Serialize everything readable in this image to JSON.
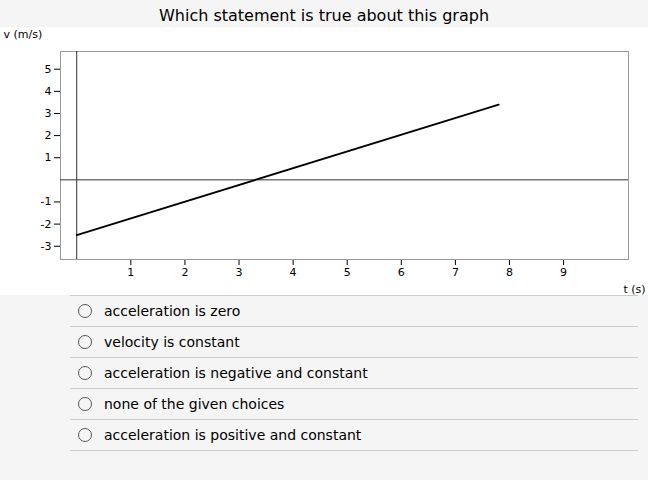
{
  "chart_data": {
    "type": "line",
    "title": "Which statement is true about this graph",
    "xlabel": "t (s)",
    "ylabel": "v (m/s)",
    "x": [
      0.0,
      7.8
    ],
    "values": [
      -2.5,
      3.4
    ],
    "color": "#000000",
    "xlim": [
      -0.3,
      10.2
    ],
    "ylim": [
      -3.6,
      5.8
    ],
    "xticks": [
      1,
      2,
      3,
      4,
      5,
      6,
      7,
      8,
      9
    ],
    "yticks": [
      -3,
      -2,
      -1,
      1,
      2,
      3,
      4,
      5
    ],
    "annotations": [
      "acceleration is zero",
      "velocity is constant",
      "acceleration is negative and constant",
      "none of the given choices",
      "acceleration is positive and constant"
    ]
  }
}
